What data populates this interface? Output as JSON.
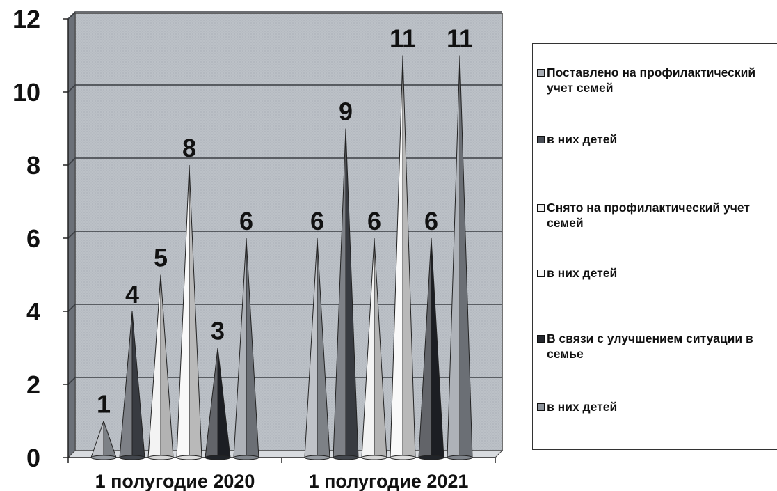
{
  "chart_data": {
    "type": "bar",
    "mark_shape": "cone",
    "categories": [
      "1 полугодие 2020",
      "1 полугодие 2021"
    ],
    "series": [
      {
        "name": "Поставлено на профилактический учет семей",
        "color": "#a7acb3",
        "values": [
          1,
          6
        ]
      },
      {
        "name": "в них детей",
        "color": "#4a4f57",
        "values": [
          4,
          9
        ]
      },
      {
        "name": "Снято на профилактический учет семей",
        "color": "#eeeeee",
        "values": [
          5,
          6
        ]
      },
      {
        "name": "в них детей",
        "color": "#f7f7f7",
        "values": [
          8,
          11
        ]
      },
      {
        "name": "В связи с улучшением ситуации в семье",
        "color": "#25282e",
        "values": [
          3,
          6
        ]
      },
      {
        "name": "в них детей",
        "color": "#8e949c",
        "values": [
          6,
          11
        ]
      }
    ],
    "y_ticks": [
      "0",
      "2",
      "4",
      "6",
      "8",
      "10",
      "12"
    ],
    "ylim": [
      0,
      12
    ],
    "grid": true,
    "legend_position": "right",
    "data_labels": true,
    "plot_background": "#b9bec4"
  }
}
